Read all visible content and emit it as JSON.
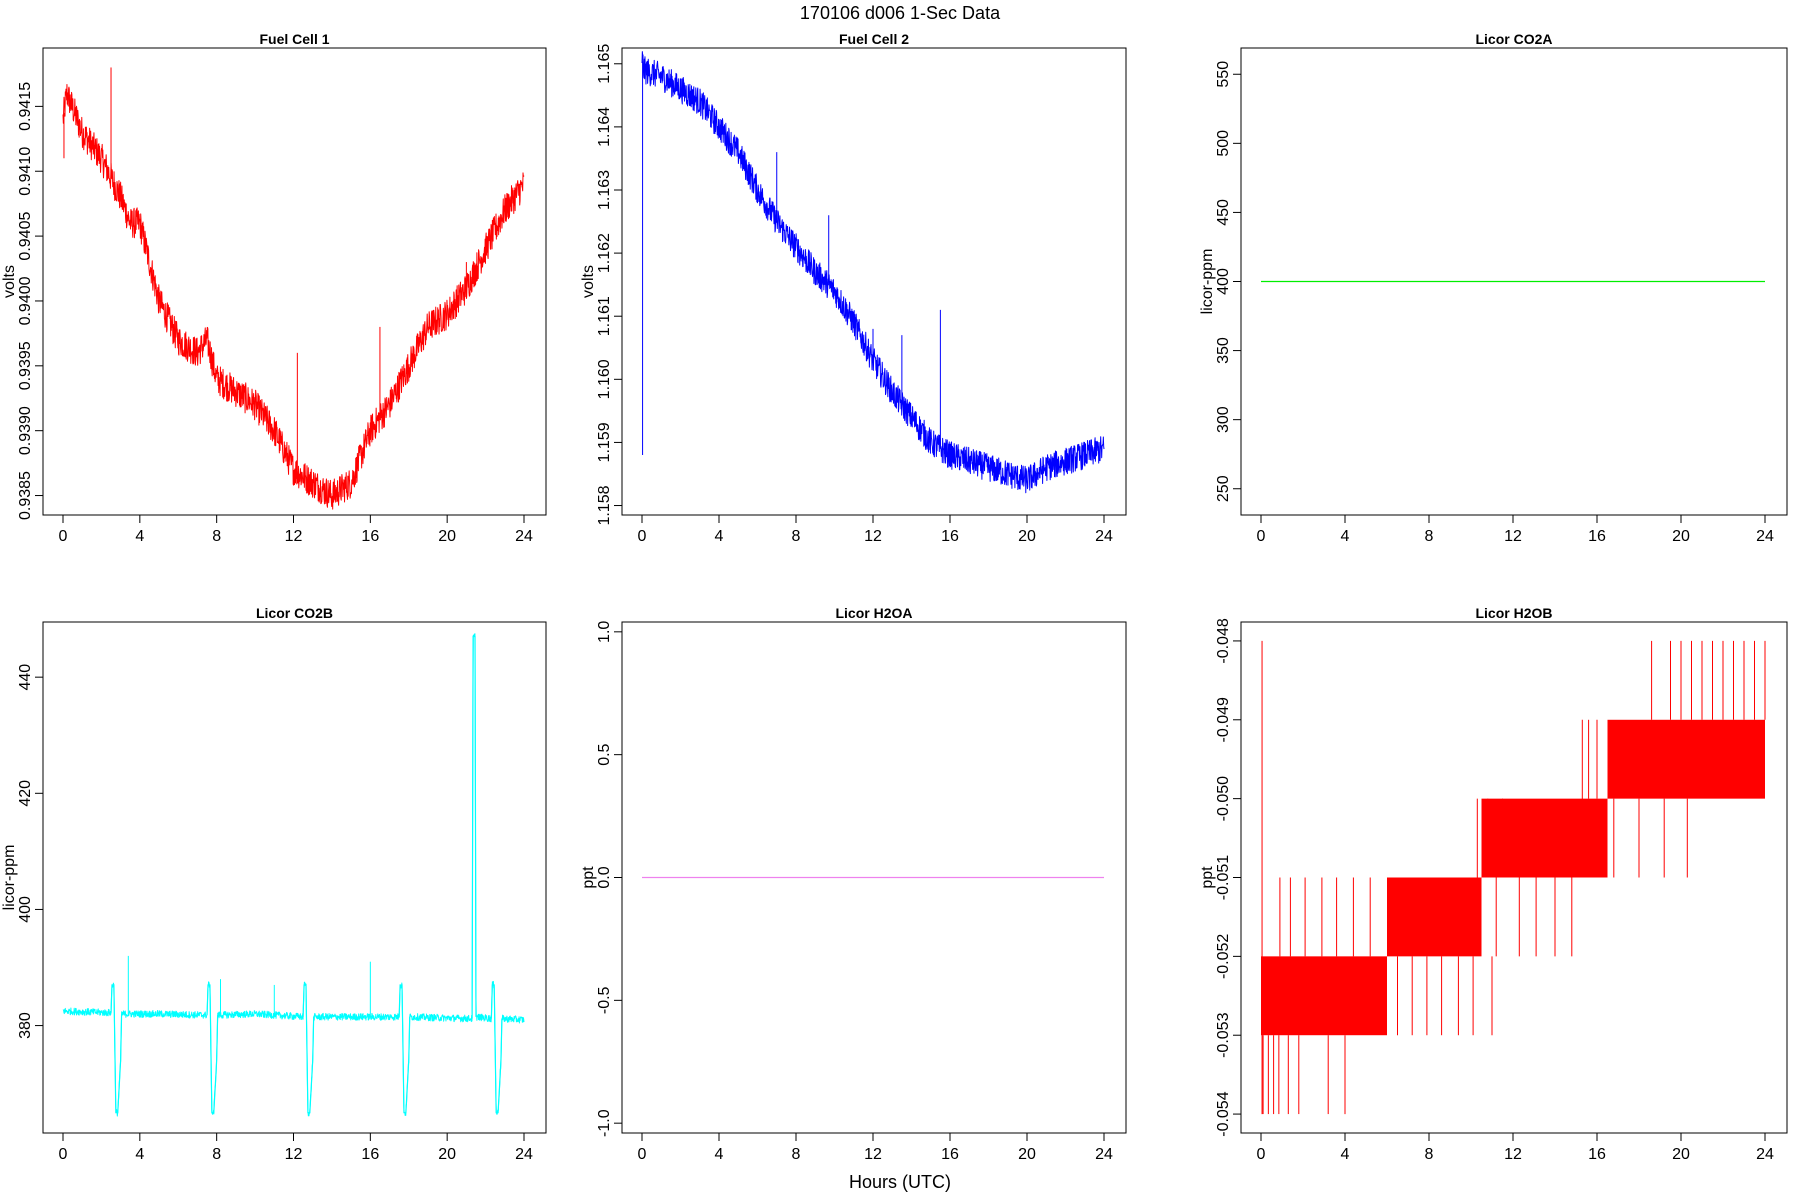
{
  "figure": {
    "title": "170106   d006   1-Sec Data",
    "xlabel": "Hours (UTC)"
  },
  "chart_data": [
    {
      "type": "line",
      "title": "Fuel Cell 1",
      "ylabel": "volts",
      "color": "#ff0000",
      "xlim": [
        0,
        24
      ],
      "ylim": [
        0.93835,
        0.94195
      ],
      "xticks": [
        0,
        4,
        8,
        12,
        16,
        20,
        24
      ],
      "xtick_labels": [
        "0",
        "4",
        "8",
        "12",
        "16",
        "20",
        "24"
      ],
      "yticks": [
        0.9385,
        0.939,
        0.9395,
        0.94,
        0.9405,
        0.941,
        0.9415
      ],
      "ytick_labels": [
        "0.9385",
        "0.9390",
        "0.9395",
        "0.9400",
        "0.9405",
        "0.9410",
        "0.9415"
      ],
      "noise": 0.00012,
      "series": [
        {
          "x": [
            0,
            0.2,
            1,
            2,
            3,
            3.5,
            4,
            4.5,
            5,
            6,
            7,
            7.5,
            8,
            9,
            10,
            11,
            12,
            13,
            14,
            15,
            16,
            17,
            18,
            19,
            20,
            21,
            22,
            23,
            24
          ],
          "y": [
            0.9414,
            0.9416,
            0.9413,
            0.9411,
            0.9408,
            0.9406,
            0.9406,
            0.9403,
            0.94,
            0.9397,
            0.9396,
            0.9397,
            0.9394,
            0.9393,
            0.9392,
            0.939,
            0.9387,
            0.9386,
            0.9385,
            0.9386,
            0.939,
            0.9392,
            0.9395,
            0.9398,
            0.9399,
            0.9401,
            0.9404,
            0.9407,
            0.9409
          ]
        }
      ],
      "spikes": [
        {
          "x": 0.05,
          "y": 0.9411
        },
        {
          "x": 2.5,
          "y": 0.9418
        },
        {
          "x": 12.2,
          "y": 0.9396
        },
        {
          "x": 16.5,
          "y": 0.9398
        },
        {
          "x": 21.0,
          "y": 0.9403
        }
      ]
    },
    {
      "type": "line",
      "title": "Fuel Cell 2",
      "ylabel": "volts",
      "color": "#0000ff",
      "xlim": [
        0,
        24
      ],
      "ylim": [
        1.15785,
        1.16525
      ],
      "xticks": [
        0,
        4,
        8,
        12,
        16,
        20,
        24
      ],
      "xtick_labels": [
        "0",
        "4",
        "8",
        "12",
        "16",
        "20",
        "24"
      ],
      "yticks": [
        1.158,
        1.159,
        1.16,
        1.161,
        1.162,
        1.163,
        1.164,
        1.165
      ],
      "ytick_labels": [
        "1.158",
        "1.159",
        "1.160",
        "1.161",
        "1.162",
        "1.163",
        "1.164",
        "1.165"
      ],
      "noise": 0.00022,
      "series": [
        {
          "x": [
            0,
            0.1,
            1,
            2,
            3,
            4,
            5,
            6,
            7,
            8,
            9,
            10,
            11,
            12,
            13,
            14,
            15,
            16,
            17,
            18,
            19,
            20,
            21,
            22,
            23,
            24
          ],
          "y": [
            1.1651,
            1.1649,
            1.1648,
            1.1646,
            1.1644,
            1.164,
            1.1636,
            1.163,
            1.1625,
            1.1621,
            1.1617,
            1.1614,
            1.1609,
            1.1603,
            1.1598,
            1.1594,
            1.159,
            1.1588,
            1.1587,
            1.1586,
            1.1585,
            1.1584,
            1.1586,
            1.1587,
            1.1588,
            1.1589
          ]
        }
      ],
      "spikes": [
        {
          "x": 0.03,
          "y": 1.1588
        },
        {
          "x": 7.0,
          "y": 1.1636
        },
        {
          "x": 9.7,
          "y": 1.1626
        },
        {
          "x": 12.0,
          "y": 1.1608
        },
        {
          "x": 13.5,
          "y": 1.1607
        },
        {
          "x": 15.5,
          "y": 1.1611
        }
      ]
    },
    {
      "type": "line",
      "title": "Licor CO2A",
      "ylabel": "licor-ppm",
      "color": "#00ee00",
      "xlim": [
        0,
        24
      ],
      "ylim": [
        231,
        569
      ],
      "xticks": [
        0,
        4,
        8,
        12,
        16,
        20,
        24
      ],
      "xtick_labels": [
        "0",
        "4",
        "8",
        "12",
        "16",
        "20",
        "24"
      ],
      "yticks": [
        250,
        300,
        350,
        400,
        450,
        500,
        550
      ],
      "ytick_labels": [
        "250",
        "300",
        "350",
        "400",
        "450",
        "500",
        "550"
      ],
      "noise": 0,
      "series": [
        {
          "x": [
            0,
            24
          ],
          "y": [
            400,
            400
          ]
        }
      ],
      "spikes": []
    },
    {
      "type": "line",
      "title": "Licor CO2B",
      "ylabel": "licor-ppm",
      "color": "#00ffff",
      "xlim": [
        0,
        24
      ],
      "ylim": [
        361.5,
        449.5
      ],
      "xticks": [
        0,
        4,
        8,
        12,
        16,
        20,
        24
      ],
      "xtick_labels": [
        "0",
        "4",
        "8",
        "12",
        "16",
        "20",
        "24"
      ],
      "yticks": [
        380,
        400,
        420,
        440
      ],
      "ytick_labels": [
        "380",
        "400",
        "420",
        "440"
      ],
      "noise": 0.6,
      "series": [
        {
          "x": [
            0,
            2.5,
            2.55,
            2.65,
            2.75,
            2.85,
            3.0,
            3.05,
            5,
            7.5,
            7.55,
            7.65,
            7.75,
            7.85,
            8.0,
            8.05,
            10,
            12.5,
            12.55,
            12.65,
            12.75,
            12.85,
            13.0,
            13.05,
            15,
            17.5,
            17.55,
            17.65,
            17.75,
            17.85,
            18.0,
            18.05,
            20,
            21.3,
            21.35,
            21.45,
            21.5,
            22.3,
            22.35,
            22.45,
            22.55,
            22.65,
            22.8,
            22.85,
            24
          ],
          "y": [
            382.5,
            382.2,
            387,
            387,
            365,
            365,
            374,
            382.0,
            382.0,
            381.8,
            387,
            387,
            365,
            365,
            374,
            381.8,
            382.0,
            381.5,
            387,
            387,
            365,
            365,
            374,
            381.5,
            381.5,
            381.5,
            387,
            387,
            365,
            365,
            374,
            381.5,
            381.3,
            381.2,
            447,
            447,
            381.5,
            381.2,
            387,
            387,
            365,
            365,
            374,
            381.2,
            381.0
          ]
        }
      ],
      "spikes": [
        {
          "x": 3.4,
          "y": 392
        },
        {
          "x": 8.2,
          "y": 388
        },
        {
          "x": 11.0,
          "y": 387
        },
        {
          "x": 16.0,
          "y": 391
        }
      ]
    },
    {
      "type": "line",
      "title": "Licor H2OA",
      "ylabel": "ppt",
      "color": "#ee82ee",
      "xlim": [
        0,
        24
      ],
      "ylim": [
        -1.04,
        1.04
      ],
      "xticks": [
        0,
        4,
        8,
        12,
        16,
        20,
        24
      ],
      "xtick_labels": [
        "0",
        "4",
        "8",
        "12",
        "16",
        "20",
        "24"
      ],
      "yticks": [
        -1.0,
        -0.5,
        0.0,
        0.5,
        1.0
      ],
      "ytick_labels": [
        "-1.0",
        "-0.5",
        "0.0",
        "0.5",
        "1.0"
      ],
      "noise": 0,
      "series": [
        {
          "x": [
            0,
            24
          ],
          "y": [
            0,
            0
          ]
        }
      ],
      "spikes": []
    },
    {
      "type": "bar",
      "title": "Licor H2OB",
      "ylabel": "ppt",
      "color": "#ff0000",
      "xlim": [
        0,
        24
      ],
      "ylim": [
        -0.05424,
        -0.04776
      ],
      "xticks": [
        0,
        4,
        8,
        12,
        16,
        20,
        24
      ],
      "xtick_labels": [
        "0",
        "4",
        "8",
        "12",
        "16",
        "20",
        "24"
      ],
      "yticks": [
        -0.054,
        -0.053,
        -0.052,
        -0.051,
        -0.05,
        -0.049,
        -0.048
      ],
      "ytick_labels": [
        "-0.054",
        "-0.053",
        "-0.052",
        "-0.051",
        "-0.050",
        "-0.049",
        "-0.048"
      ],
      "bands": [
        {
          "x0": 0,
          "x1": 6,
          "lo": -0.053,
          "hi": -0.052
        },
        {
          "x0": 6,
          "x1": 10.5,
          "lo": -0.052,
          "hi": -0.051
        },
        {
          "x0": 10.5,
          "x1": 16.5,
          "lo": -0.051,
          "hi": -0.05
        },
        {
          "x0": 16.5,
          "x1": 24,
          "lo": -0.05,
          "hi": -0.049
        }
      ],
      "spikes": [
        {
          "x": 0.05,
          "y0": -0.054,
          "y1": -0.048
        },
        {
          "x": 0.1,
          "y0": -0.054,
          "y1": -0.053
        },
        {
          "x": 0.35,
          "y0": -0.054,
          "y1": -0.053
        },
        {
          "x": 0.6,
          "y0": -0.054,
          "y1": -0.053
        },
        {
          "x": 0.85,
          "y0": -0.054,
          "y1": -0.053
        },
        {
          "x": 1.3,
          "y0": -0.054,
          "y1": -0.053
        },
        {
          "x": 1.8,
          "y0": -0.054,
          "y1": -0.053
        },
        {
          "x": 3.2,
          "y0": -0.054,
          "y1": -0.053
        },
        {
          "x": 4.0,
          "y0": -0.054,
          "y1": -0.053
        },
        {
          "x": 0.9,
          "y0": -0.052,
          "y1": -0.051
        },
        {
          "x": 1.4,
          "y0": -0.052,
          "y1": -0.051
        },
        {
          "x": 2.1,
          "y0": -0.052,
          "y1": -0.051
        },
        {
          "x": 2.9,
          "y0": -0.052,
          "y1": -0.051
        },
        {
          "x": 3.6,
          "y0": -0.052,
          "y1": -0.051
        },
        {
          "x": 4.4,
          "y0": -0.052,
          "y1": -0.051
        },
        {
          "x": 5.2,
          "y0": -0.052,
          "y1": -0.051
        },
        {
          "x": 6.5,
          "y0": -0.053,
          "y1": -0.052
        },
        {
          "x": 7.2,
          "y0": -0.053,
          "y1": -0.052
        },
        {
          "x": 7.9,
          "y0": -0.053,
          "y1": -0.052
        },
        {
          "x": 8.6,
          "y0": -0.053,
          "y1": -0.052
        },
        {
          "x": 9.4,
          "y0": -0.053,
          "y1": -0.052
        },
        {
          "x": 10.1,
          "y0": -0.053,
          "y1": -0.052
        },
        {
          "x": 11.0,
          "y0": -0.053,
          "y1": -0.052
        },
        {
          "x": 10.3,
          "y0": -0.051,
          "y1": -0.05
        },
        {
          "x": 10.8,
          "y0": -0.051,
          "y1": -0.05
        },
        {
          "x": 11.5,
          "y0": -0.051,
          "y1": -0.05
        },
        {
          "x": 11.2,
          "y0": -0.052,
          "y1": -0.051
        },
        {
          "x": 12.3,
          "y0": -0.052,
          "y1": -0.051
        },
        {
          "x": 13.1,
          "y0": -0.052,
          "y1": -0.051
        },
        {
          "x": 14.0,
          "y0": -0.052,
          "y1": -0.051
        },
        {
          "x": 14.8,
          "y0": -0.052,
          "y1": -0.051
        },
        {
          "x": 15.3,
          "y0": -0.051,
          "y1": -0.049
        },
        {
          "x": 15.6,
          "y0": -0.05,
          "y1": -0.049
        },
        {
          "x": 16.0,
          "y0": -0.05,
          "y1": -0.049
        },
        {
          "x": 16.8,
          "y0": -0.051,
          "y1": -0.05
        },
        {
          "x": 18.0,
          "y0": -0.051,
          "y1": -0.05
        },
        {
          "x": 19.2,
          "y0": -0.051,
          "y1": -0.05
        },
        {
          "x": 20.3,
          "y0": -0.051,
          "y1": -0.05
        },
        {
          "x": 18.6,
          "y0": -0.049,
          "y1": -0.048
        },
        {
          "x": 19.5,
          "y0": -0.049,
          "y1": -0.048
        },
        {
          "x": 20.0,
          "y0": -0.049,
          "y1": -0.048
        },
        {
          "x": 20.5,
          "y0": -0.049,
          "y1": -0.048
        },
        {
          "x": 21.0,
          "y0": -0.049,
          "y1": -0.048
        },
        {
          "x": 21.5,
          "y0": -0.049,
          "y1": -0.048
        },
        {
          "x": 22.0,
          "y0": -0.049,
          "y1": -0.048
        },
        {
          "x": 22.5,
          "y0": -0.049,
          "y1": -0.048
        },
        {
          "x": 23.0,
          "y0": -0.049,
          "y1": -0.048
        },
        {
          "x": 23.5,
          "y0": -0.049,
          "y1": -0.048
        },
        {
          "x": 24.0,
          "y0": -0.049,
          "y1": -0.048
        }
      ]
    }
  ]
}
